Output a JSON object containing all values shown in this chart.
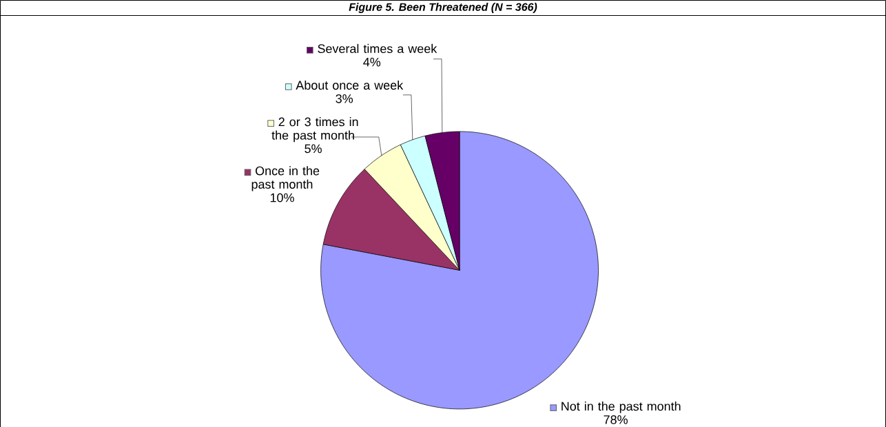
{
  "chart_data": {
    "type": "pie",
    "title": "Figure 5. Been Threatened (N = 366)",
    "categories": [
      "Not in the past month",
      "Once in the past month",
      "2 or 3 times in the past month",
      "About once a week",
      "Several times a week"
    ],
    "values": [
      78,
      10,
      5,
      3,
      4
    ],
    "colors": [
      "#9999ff",
      "#993366",
      "#ffffcc",
      "#ccffff",
      "#660066"
    ],
    "value_labels": [
      "78%",
      "10%",
      "5%",
      "3%",
      "4%"
    ],
    "legend": "left"
  }
}
